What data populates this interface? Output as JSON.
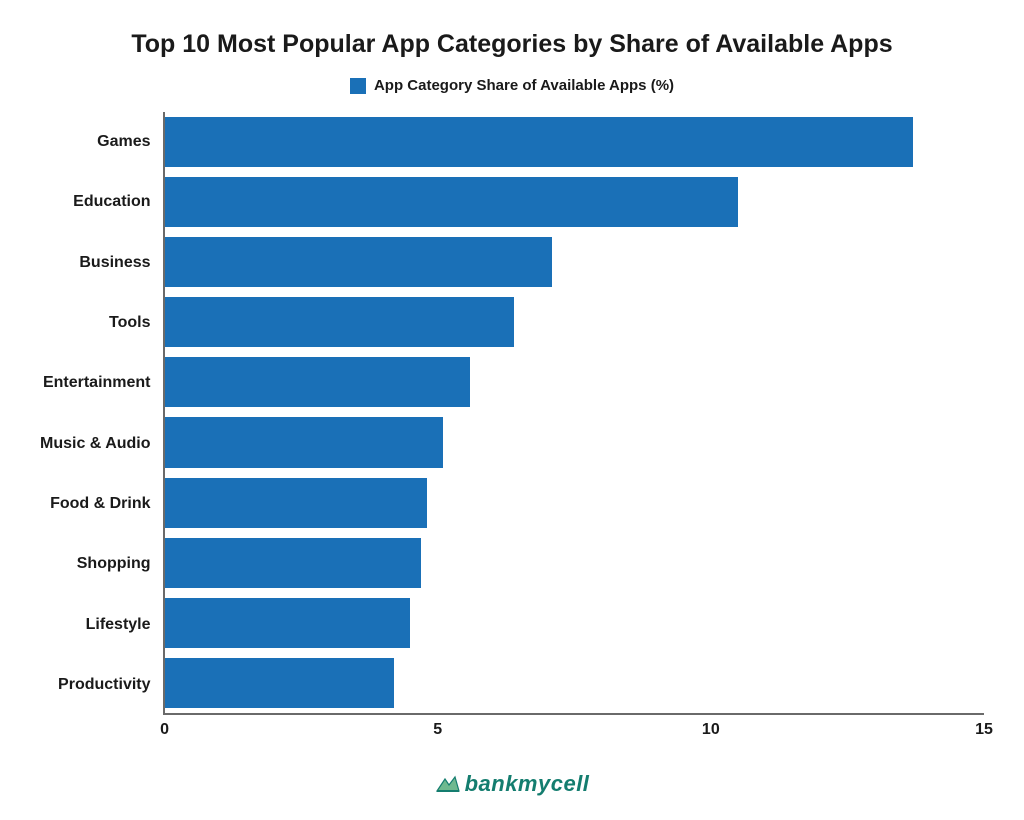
{
  "chart": {
    "type": "bar-horizontal",
    "title": "Top 10 Most Popular App Categories by Share of Available Apps",
    "title_fontsize": 25,
    "title_color": "#1a1a1a",
    "legend": {
      "label": "App Category Share of Available Apps (%)",
      "swatch_color": "#1a70b7",
      "label_fontsize": 15,
      "label_color": "#1a1a1a"
    },
    "categories": [
      "Games",
      "Education",
      "Business",
      "Tools",
      "Entertainment",
      "Music & Audio",
      "Food & Drink",
      "Shopping",
      "Lifestyle",
      "Productivity"
    ],
    "values": [
      13.7,
      10.5,
      7.1,
      6.4,
      5.6,
      5.1,
      4.8,
      4.7,
      4.5,
      4.2
    ],
    "bar_color": "#1a70b7",
    "ylabel_fontsize": 16,
    "ylabel_color": "#1a1a1a",
    "xlim": [
      0,
      15
    ],
    "xtick_step": 5,
    "xtick_fontsize": 16,
    "xtick_color": "#1a1a1a",
    "axis_color": "#6a6a6a",
    "background_color": "#ffffff",
    "bar_gap_ratio": 0.25
  },
  "footer": {
    "brand_text": "bankmycell",
    "brand_color": "#147d6f",
    "brand_fontsize": 22,
    "icon_color": "#6fb98f"
  }
}
